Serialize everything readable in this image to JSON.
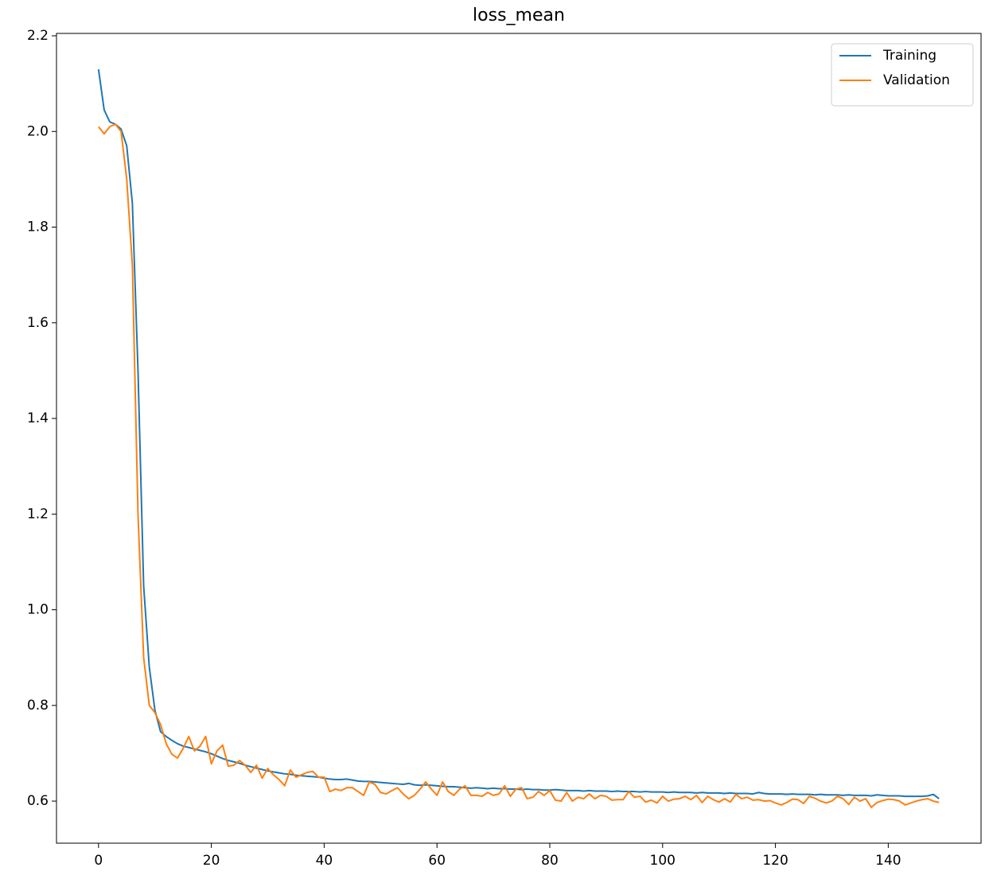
{
  "chart_data": {
    "type": "line",
    "title": "loss_mean",
    "x": [
      0,
      1,
      2,
      3,
      4,
      5,
      6,
      7,
      8,
      9,
      10,
      11,
      12,
      13,
      14,
      15,
      16,
      17,
      18,
      19,
      20,
      21,
      22,
      23,
      24,
      25,
      26,
      27,
      28,
      29,
      30,
      31,
      32,
      33,
      34,
      35,
      36,
      37,
      38,
      39,
      40,
      41,
      42,
      43,
      44,
      45,
      46,
      47,
      48,
      49,
      50,
      51,
      52,
      53,
      54,
      55,
      56,
      57,
      58,
      59,
      60,
      61,
      62,
      63,
      64,
      65,
      66,
      67,
      68,
      69,
      70,
      71,
      72,
      73,
      74,
      75,
      76,
      77,
      78,
      79,
      80,
      81,
      82,
      83,
      84,
      85,
      86,
      87,
      88,
      89,
      90,
      91,
      92,
      93,
      94,
      95,
      96,
      97,
      98,
      99,
      100,
      101,
      102,
      103,
      104,
      105,
      106,
      107,
      108,
      109,
      110,
      111,
      112,
      113,
      114,
      115,
      116,
      117,
      118,
      119,
      120,
      121,
      122,
      123,
      124,
      125,
      126,
      127,
      128,
      129,
      130,
      131,
      132,
      133,
      134,
      135,
      136,
      137,
      138,
      139,
      140,
      141,
      142,
      143,
      144,
      145,
      146,
      147,
      148,
      149
    ],
    "series": [
      {
        "name": "Training",
        "color": "#1f77b4",
        "values": [
          2.13,
          2.045,
          2.02,
          2.015,
          2.005,
          1.97,
          1.85,
          1.5,
          1.05,
          0.88,
          0.79,
          0.745,
          0.735,
          0.727,
          0.72,
          0.715,
          0.712,
          0.709,
          0.706,
          0.703,
          0.699,
          0.694,
          0.689,
          0.685,
          0.682,
          0.679,
          0.675,
          0.672,
          0.669,
          0.666,
          0.663,
          0.661,
          0.659,
          0.657,
          0.656,
          0.654,
          0.653,
          0.652,
          0.651,
          0.65,
          0.648,
          0.646,
          0.645,
          0.645,
          0.646,
          0.644,
          0.642,
          0.641,
          0.641,
          0.64,
          0.639,
          0.638,
          0.637,
          0.636,
          0.635,
          0.637,
          0.634,
          0.633,
          0.634,
          0.633,
          0.632,
          0.631,
          0.63,
          0.63,
          0.629,
          0.628,
          0.627,
          0.628,
          0.627,
          0.626,
          0.627,
          0.626,
          0.626,
          0.625,
          0.625,
          0.624,
          0.625,
          0.624,
          0.624,
          0.623,
          0.623,
          0.624,
          0.623,
          0.622,
          0.622,
          0.622,
          0.621,
          0.622,
          0.621,
          0.621,
          0.621,
          0.62,
          0.621,
          0.62,
          0.62,
          0.62,
          0.619,
          0.62,
          0.619,
          0.619,
          0.619,
          0.618,
          0.619,
          0.618,
          0.618,
          0.618,
          0.617,
          0.618,
          0.617,
          0.617,
          0.617,
          0.616,
          0.617,
          0.616,
          0.616,
          0.616,
          0.615,
          0.618,
          0.616,
          0.615,
          0.615,
          0.615,
          0.614,
          0.615,
          0.614,
          0.614,
          0.614,
          0.613,
          0.614,
          0.613,
          0.613,
          0.613,
          0.612,
          0.613,
          0.612,
          0.612,
          0.612,
          0.611,
          0.613,
          0.612,
          0.611,
          0.611,
          0.611,
          0.61,
          0.61,
          0.61,
          0.61,
          0.611,
          0.614,
          0.605
        ]
      },
      {
        "name": "Validation",
        "color": "#ff7f0e",
        "values": [
          2.01,
          1.995,
          2.01,
          2.015,
          2.0,
          1.9,
          1.72,
          1.2,
          0.9,
          0.8,
          0.785,
          0.76,
          0.72,
          0.698,
          0.69,
          0.71,
          0.735,
          0.705,
          0.715,
          0.735,
          0.678,
          0.705,
          0.717,
          0.673,
          0.675,
          0.685,
          0.675,
          0.66,
          0.675,
          0.648,
          0.668,
          0.655,
          0.645,
          0.632,
          0.665,
          0.65,
          0.655,
          0.66,
          0.662,
          0.65,
          0.65,
          0.62,
          0.625,
          0.622,
          0.628,
          0.628,
          0.62,
          0.612,
          0.64,
          0.635,
          0.618,
          0.615,
          0.622,
          0.628,
          0.615,
          0.605,
          0.612,
          0.625,
          0.64,
          0.625,
          0.612,
          0.64,
          0.62,
          0.612,
          0.625,
          0.632,
          0.612,
          0.612,
          0.61,
          0.618,
          0.612,
          0.615,
          0.632,
          0.61,
          0.625,
          0.628,
          0.605,
          0.608,
          0.62,
          0.612,
          0.622,
          0.602,
          0.6,
          0.618,
          0.6,
          0.608,
          0.605,
          0.615,
          0.605,
          0.612,
          0.61,
          0.602,
          0.603,
          0.603,
          0.62,
          0.608,
          0.61,
          0.598,
          0.602,
          0.596,
          0.61,
          0.6,
          0.604,
          0.605,
          0.61,
          0.603,
          0.612,
          0.597,
          0.61,
          0.603,
          0.598,
          0.605,
          0.598,
          0.614,
          0.605,
          0.608,
          0.602,
          0.603,
          0.6,
          0.601,
          0.596,
          0.592,
          0.597,
          0.604,
          0.603,
          0.595,
          0.61,
          0.606,
          0.6,
          0.596,
          0.6,
          0.61,
          0.605,
          0.593,
          0.608,
          0.6,
          0.605,
          0.587,
          0.597,
          0.601,
          0.604,
          0.603,
          0.6,
          0.592,
          0.596,
          0.6,
          0.603,
          0.605,
          0.6,
          0.597
        ]
      }
    ],
    "xlim": [
      -7.45,
      156.45
    ],
    "xticks": [
      0,
      20,
      40,
      60,
      80,
      100,
      120,
      140
    ],
    "ylim": [
      0.512,
      2.205
    ],
    "yticks": [
      0.6,
      0.8,
      {
        "value": 1,
        "label": "1.0"
      },
      1.2,
      1.4,
      1.6,
      1.8,
      {
        "value": 2,
        "label": "2.0"
      },
      2.2
    ],
    "legend": "upper right"
  }
}
